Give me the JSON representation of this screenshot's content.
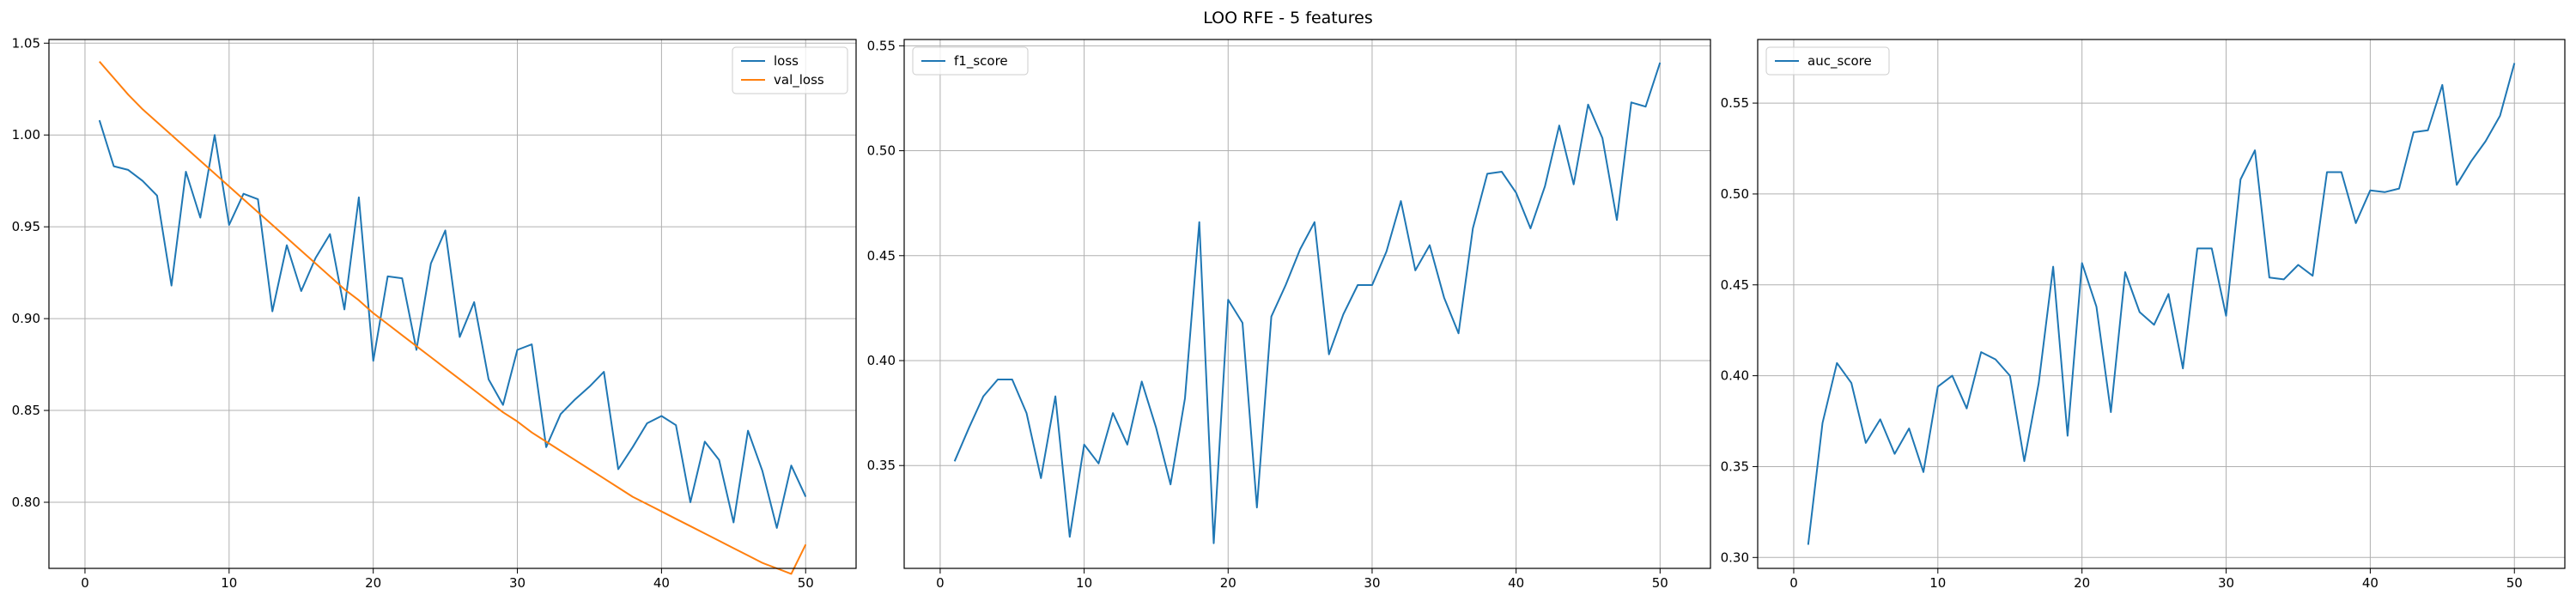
{
  "figure": {
    "title": "LOO RFE - 5 features"
  },
  "colors": {
    "series_1": "#1f77b4",
    "series_2": "#ff7f0e",
    "grid": "#b0b0b0",
    "axes": "#000000"
  },
  "chart_data": [
    {
      "type": "line",
      "title": "",
      "xlabel": "",
      "ylabel": "",
      "grid": true,
      "legend": "upper-right",
      "xlim": [
        -2.5,
        53.5
      ],
      "ylim": [
        0.764,
        1.052
      ],
      "xticks": [
        0,
        10,
        20,
        30,
        40,
        50
      ],
      "yticks": [
        0.8,
        0.85,
        0.9,
        0.95,
        1.0,
        1.05
      ],
      "ytick_labels": [
        "0.80",
        "0.85",
        "0.90",
        "0.95",
        "1.00",
        "1.05"
      ],
      "series": [
        {
          "name": "loss",
          "color": "#1f77b4",
          "x": [
            1,
            2,
            3,
            4,
            5,
            6,
            7,
            8,
            9,
            10,
            11,
            12,
            13,
            14,
            15,
            16,
            17,
            18,
            19,
            20,
            21,
            22,
            23,
            24,
            25,
            26,
            27,
            28,
            29,
            30,
            31,
            32,
            33,
            34,
            35,
            36,
            37,
            38,
            39,
            40,
            41,
            42,
            43,
            44,
            45,
            46,
            47,
            48,
            49,
            50
          ],
          "values": [
            1.008,
            0.983,
            0.981,
            0.975,
            0.967,
            0.918,
            0.98,
            0.955,
            1.0,
            0.951,
            0.968,
            0.965,
            0.904,
            0.94,
            0.915,
            0.933,
            0.946,
            0.905,
            0.966,
            0.877,
            0.923,
            0.922,
            0.883,
            0.93,
            0.948,
            0.89,
            0.909,
            0.867,
            0.853,
            0.883,
            0.886,
            0.83,
            0.848,
            0.856,
            0.863,
            0.871,
            0.818,
            0.83,
            0.843,
            0.847,
            0.842,
            0.8,
            0.833,
            0.823,
            0.789,
            0.839,
            0.817,
            0.786,
            0.82,
            0.803
          ]
        },
        {
          "name": "val_loss",
          "color": "#ff7f0e",
          "x": [
            1,
            2,
            3,
            4,
            5,
            6,
            7,
            8,
            9,
            10,
            11,
            12,
            13,
            14,
            15,
            16,
            17,
            18,
            19,
            20,
            21,
            22,
            23,
            24,
            25,
            26,
            27,
            28,
            29,
            30,
            31,
            32,
            33,
            34,
            35,
            36,
            37,
            38,
            39,
            40,
            41,
            42,
            43,
            44,
            45,
            46,
            47,
            48,
            49,
            50
          ],
          "values": [
            1.04,
            1.031,
            1.022,
            1.014,
            1.007,
            1.0,
            0.993,
            0.986,
            0.979,
            0.972,
            0.965,
            0.958,
            0.951,
            0.944,
            0.937,
            0.93,
            0.923,
            0.916,
            0.91,
            0.903,
            0.897,
            0.891,
            0.885,
            0.879,
            0.873,
            0.867,
            0.861,
            0.855,
            0.849,
            0.844,
            0.838,
            0.833,
            0.828,
            0.823,
            0.818,
            0.813,
            0.808,
            0.803,
            0.799,
            0.795,
            0.791,
            0.787,
            0.783,
            0.779,
            0.775,
            0.771,
            0.767,
            0.764,
            0.761,
            0.777
          ]
        }
      ]
    },
    {
      "type": "line",
      "title": "",
      "xlabel": "",
      "ylabel": "",
      "grid": true,
      "legend": "upper-left",
      "xlim": [
        -2.5,
        53.5
      ],
      "ylim": [
        0.301,
        0.553
      ],
      "xticks": [
        0,
        10,
        20,
        30,
        40,
        50
      ],
      "yticks": [
        0.35,
        0.4,
        0.45,
        0.5,
        0.55
      ],
      "ytick_labels": [
        "0.35",
        "0.40",
        "0.45",
        "0.50",
        "0.55"
      ],
      "series": [
        {
          "name": "f1_score",
          "color": "#1f77b4",
          "x": [
            1,
            2,
            3,
            4,
            5,
            6,
            7,
            8,
            9,
            10,
            11,
            12,
            13,
            14,
            15,
            16,
            17,
            18,
            19,
            20,
            21,
            22,
            23,
            24,
            25,
            26,
            27,
            28,
            29,
            30,
            31,
            32,
            33,
            34,
            35,
            36,
            37,
            38,
            39,
            40,
            41,
            42,
            43,
            44,
            45,
            46,
            47,
            48,
            49,
            50
          ],
          "values": [
            0.352,
            0.368,
            0.383,
            0.391,
            0.391,
            0.375,
            0.344,
            0.383,
            0.316,
            0.36,
            0.351,
            0.375,
            0.36,
            0.39,
            0.368,
            0.341,
            0.382,
            0.466,
            0.313,
            0.429,
            0.418,
            0.33,
            0.421,
            0.436,
            0.453,
            0.466,
            0.403,
            0.422,
            0.436,
            0.436,
            0.452,
            0.476,
            0.443,
            0.455,
            0.43,
            0.413,
            0.463,
            0.489,
            0.49,
            0.48,
            0.463,
            0.483,
            0.512,
            0.484,
            0.522,
            0.506,
            0.467,
            0.523,
            0.521,
            0.542
          ]
        }
      ]
    },
    {
      "type": "line",
      "title": "",
      "xlabel": "",
      "ylabel": "",
      "grid": true,
      "legend": "upper-left",
      "xlim": [
        -2.5,
        53.5
      ],
      "ylim": [
        0.294,
        0.585
      ],
      "xticks": [
        0,
        10,
        20,
        30,
        40,
        50
      ],
      "yticks": [
        0.3,
        0.35,
        0.4,
        0.45,
        0.5,
        0.55
      ],
      "ytick_labels": [
        "0.30",
        "0.35",
        "0.40",
        "0.45",
        "0.50",
        "0.55"
      ],
      "series": [
        {
          "name": "auc_score",
          "color": "#1f77b4",
          "x": [
            1,
            2,
            3,
            4,
            5,
            6,
            7,
            8,
            9,
            10,
            11,
            12,
            13,
            14,
            15,
            16,
            17,
            18,
            19,
            20,
            21,
            22,
            23,
            24,
            25,
            26,
            27,
            28,
            29,
            30,
            31,
            32,
            33,
            34,
            35,
            36,
            37,
            38,
            39,
            40,
            41,
            42,
            43,
            44,
            45,
            46,
            47,
            48,
            49,
            50
          ],
          "values": [
            0.307,
            0.374,
            0.407,
            0.396,
            0.363,
            0.376,
            0.357,
            0.371,
            0.347,
            0.394,
            0.4,
            0.382,
            0.413,
            0.409,
            0.4,
            0.353,
            0.396,
            0.46,
            0.367,
            0.462,
            0.438,
            0.38,
            0.457,
            0.435,
            0.428,
            0.445,
            0.404,
            0.47,
            0.47,
            0.433,
            0.508,
            0.524,
            0.454,
            0.453,
            0.461,
            0.455,
            0.512,
            0.512,
            0.484,
            0.502,
            0.501,
            0.503,
            0.534,
            0.535,
            0.56,
            0.505,
            0.518,
            0.529,
            0.543,
            0.572
          ]
        }
      ]
    }
  ]
}
